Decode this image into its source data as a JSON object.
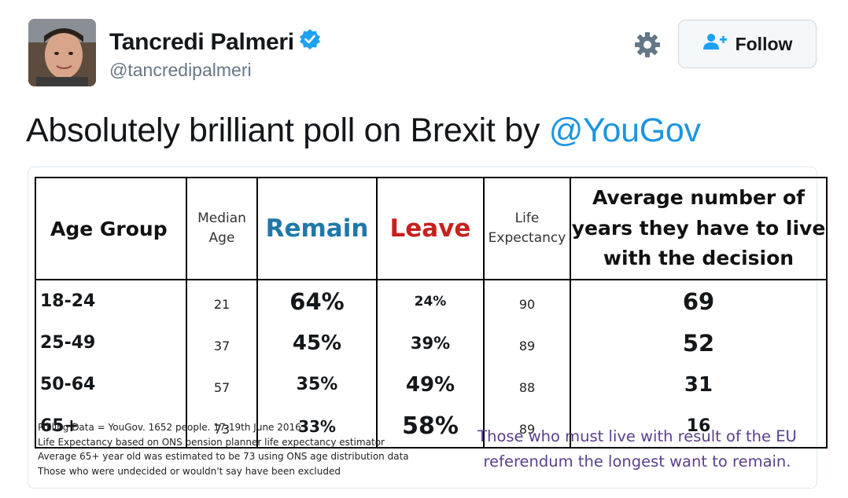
{
  "user": {
    "name": "Tancredi Palmeri",
    "handle": "@tancredipalmeri",
    "verified": true
  },
  "actions": {
    "settings_icon": "gear-icon",
    "follow_label": "Follow",
    "follow_icon": "add-user-icon"
  },
  "tweet": {
    "text": "Absolutely brilliant poll on Brexit by ",
    "mention": "@YouGov"
  },
  "colors": {
    "mention": "#1b95e0",
    "verified": "#1da1f2",
    "remain": "#1f78a8",
    "leave": "#c8201e",
    "caption": "#5b3f8c"
  },
  "image_table": {
    "headers": {
      "age_group": "Age Group",
      "median_age_line1": "Median",
      "median_age_line2": "Age",
      "remain": "Remain",
      "leave": "Leave",
      "life_line1": "Life",
      "life_line2": "Expectancy",
      "avg_line1": "Average number of",
      "avg_line2": "years they have to live",
      "avg_line3": "with the decision"
    },
    "rows": [
      {
        "age_group": "18-24",
        "median_age": "21",
        "remain": "64%",
        "leave": "24%",
        "life_expectancy": "90",
        "years": "69"
      },
      {
        "age_group": "25-49",
        "median_age": "37",
        "remain": "45%",
        "leave": "39%",
        "life_expectancy": "89",
        "years": "52"
      },
      {
        "age_group": "50-64",
        "median_age": "57",
        "remain": "35%",
        "leave": "49%",
        "life_expectancy": "88",
        "years": "31"
      },
      {
        "age_group": "65+",
        "median_age": "73",
        "remain": "33%",
        "leave": "58%",
        "life_expectancy": "89",
        "years": "16"
      }
    ],
    "notes": [
      "Polling Data = YouGov. 1652 people. 17-19th June 2016",
      "Life Expectancy based on ONS pension planner life expectancy estimator",
      "Average 65+ year old was estimated to be 73 using ONS age distribution data",
      "Those who were undecided or wouldn't say have been excluded"
    ],
    "caption_line1": "Those who must live with result of the EU",
    "caption_line2": "referendum the longest want to remain."
  }
}
